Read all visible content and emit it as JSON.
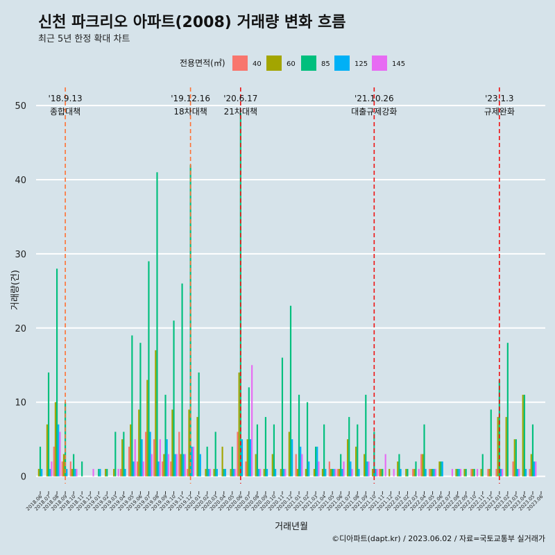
{
  "chart_data": {
    "type": "bar",
    "title": "신천 파크리오 아파트(2008) 거래량 변화 흐름",
    "subtitle": "최근 5년 한정 확대 차트",
    "xlabel": "거래년월",
    "ylabel": "거래량(건)",
    "ylim": [
      -2,
      53
    ],
    "yticks": [
      0,
      10,
      20,
      30,
      40,
      50
    ],
    "caption": "©디아파트(dapt.kr) / 2023.06.02 / 자료=국토교통부 실거래가",
    "legend_title": "전용면적(㎡)",
    "legend_position": "top",
    "categories": [
      "2018.06",
      "2018.07",
      "2018.08",
      "2018.09",
      "2018.10",
      "2018.11",
      "2018.12",
      "2019.01",
      "2019.02",
      "2019.03",
      "2019.04",
      "2019.05",
      "2019.06",
      "2019.07",
      "2019.08",
      "2019.09",
      "2019.10",
      "2019.11",
      "2019.12",
      "2020.01",
      "2020.02",
      "2020.03",
      "2020.04",
      "2020.05",
      "2020.06",
      "2020.07",
      "2020.08",
      "2020.09",
      "2020.10",
      "2020.11",
      "2020.12",
      "2021.01",
      "2021.02",
      "2021.03",
      "2021.04",
      "2021.05",
      "2021.06",
      "2021.07",
      "2021.08",
      "2021.09",
      "2021.10",
      "2021.11",
      "2021.12",
      "2022.01",
      "2022.02",
      "2022.03",
      "2022.04",
      "2022.05",
      "2022.06",
      "2022.07",
      "2022.08",
      "2022.09",
      "2022.10",
      "2022.11",
      "2022.12",
      "2023.01",
      "2023.02",
      "2023.03",
      "2023.04",
      "2023.05",
      "2023.06"
    ],
    "series": [
      {
        "name": "40",
        "color": "#f8766d",
        "values": [
          0,
          0,
          4,
          2,
          2,
          0,
          0,
          0,
          0,
          0,
          1,
          4,
          2,
          6,
          5,
          2,
          2,
          6,
          1,
          0,
          0,
          0,
          0,
          0,
          6,
          2,
          0,
          0,
          0,
          0,
          0,
          3,
          0,
          0,
          0,
          2,
          1,
          0,
          0,
          0,
          0,
          1,
          0,
          0,
          0,
          1,
          3,
          1,
          0,
          0,
          0,
          0,
          1,
          0,
          1,
          1,
          0,
          2,
          0,
          1,
          0
        ]
      },
      {
        "name": "60",
        "color": "#a3a500",
        "values": [
          1,
          7,
          10,
          3,
          1,
          0,
          0,
          0,
          1,
          1,
          5,
          7,
          9,
          13,
          17,
          3,
          9,
          3,
          9,
          8,
          1,
          1,
          4,
          1,
          14,
          5,
          3,
          1,
          3,
          1,
          6,
          1,
          1,
          1,
          1,
          1,
          1,
          5,
          4,
          3,
          1,
          1,
          1,
          2,
          1,
          1,
          3,
          1,
          2,
          0,
          1,
          1,
          1,
          1,
          1,
          8,
          8,
          5,
          11,
          3,
          0
        ]
      },
      {
        "name": "85",
        "color": "#00bf7d",
        "values": [
          4,
          14,
          28,
          10,
          3,
          2,
          0,
          1,
          1,
          6,
          6,
          19,
          18,
          29,
          41,
          11,
          21,
          26,
          42,
          14,
          4,
          6,
          1,
          4,
          49,
          12,
          7,
          8,
          7,
          16,
          23,
          11,
          10,
          4,
          7,
          1,
          3,
          8,
          7,
          11,
          6,
          1,
          0,
          3,
          1,
          2,
          7,
          1,
          2,
          0,
          1,
          1,
          1,
          3,
          9,
          13,
          18,
          5,
          11,
          7,
          0
        ]
      },
      {
        "name": "125",
        "color": "#00b0f6",
        "values": [
          1,
          1,
          7,
          1,
          1,
          0,
          0,
          1,
          0,
          0,
          1,
          2,
          5,
          6,
          2,
          5,
          3,
          3,
          4,
          3,
          1,
          1,
          1,
          1,
          5,
          5,
          1,
          1,
          1,
          1,
          5,
          4,
          2,
          4,
          1,
          1,
          1,
          2,
          1,
          2,
          1,
          0,
          0,
          1,
          0,
          0,
          1,
          1,
          2,
          0,
          1,
          0,
          0,
          0,
          0,
          1,
          0,
          1,
          1,
          2,
          0
        ]
      },
      {
        "name": "145",
        "color": "#e76bf3",
        "values": [
          0,
          2,
          6,
          0,
          1,
          0,
          1,
          0,
          0,
          1,
          0,
          5,
          2,
          3,
          5,
          3,
          3,
          3,
          4,
          0,
          1,
          0,
          0,
          1,
          0,
          15,
          1,
          0,
          0,
          1,
          0,
          3,
          0,
          2,
          0,
          1,
          2,
          1,
          0,
          2,
          1,
          3,
          1,
          0,
          0,
          1,
          0,
          1,
          0,
          1,
          1,
          0,
          1,
          0,
          0,
          1,
          0,
          1,
          0,
          2,
          0
        ]
      }
    ],
    "events": [
      {
        "category": "2018.09",
        "date": "'18.9.13",
        "label": "종합대책",
        "color": "#ff7033"
      },
      {
        "category": "2019.12",
        "date": "'19.12.16",
        "label": "18차대책",
        "color": "#ff7033"
      },
      {
        "category": "2020.06",
        "date": "'20.6.17",
        "label": "21차대책",
        "color": "#ee1111"
      },
      {
        "category": "2021.10",
        "date": "'21.10.26",
        "label": "대출규제강화",
        "color": "#ee1111"
      },
      {
        "category": "2023.01",
        "date": "'23.1.3",
        "label": "규제완화",
        "color": "#ee1111"
      }
    ]
  }
}
